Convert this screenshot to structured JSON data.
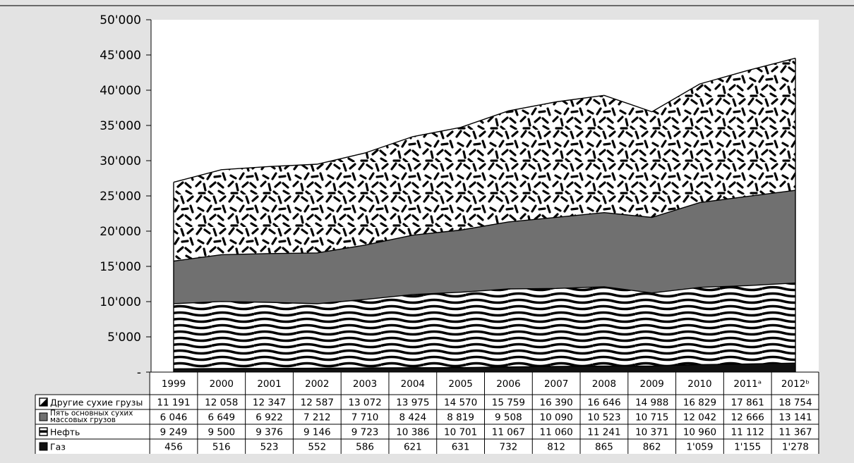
{
  "chart_data": {
    "type": "area",
    "stacked": true,
    "categories": [
      "1999",
      "2000",
      "2001",
      "2002",
      "2003",
      "2004",
      "2005",
      "2006",
      "2007",
      "2008",
      "2009",
      "2010",
      "2011ᵃ",
      "2012ᵇ"
    ],
    "y_tick_labels": [
      "-",
      "5'000",
      "10'000",
      "15'000",
      "20'000",
      "25'000",
      "30'000",
      "35'000",
      "40'000",
      "45'000",
      "50'000"
    ],
    "ylim": [
      0,
      50000
    ],
    "grid": false,
    "legend": "table-below",
    "series": [
      {
        "name": "Газ",
        "fill": "#111111",
        "pattern": "solid",
        "values": [
          456,
          516,
          523,
          552,
          586,
          621,
          631,
          732,
          812,
          865,
          862,
          1059,
          1155,
          1278
        ],
        "labels": [
          "456",
          "516",
          "523",
          "552",
          "586",
          "621",
          "631",
          "732",
          "812",
          "865",
          "862",
          "1'059",
          "1'155",
          "1'278"
        ]
      },
      {
        "name": "Нефть",
        "fill": "#ffffff",
        "pattern": "waves",
        "values": [
          9249,
          9500,
          9376,
          9146,
          9723,
          10386,
          10701,
          11067,
          11060,
          11241,
          10371,
          10960,
          11112,
          11367
        ],
        "labels": [
          "9 249",
          "9 500",
          "9 376",
          "9 146",
          "9 723",
          "10 386",
          "10 701",
          "11 067",
          "11 060",
          "11 241",
          "10 371",
          "10 960",
          "11 112",
          "11 367"
        ]
      },
      {
        "name": "Пять основных сухих массовых грузов",
        "fill": "#707070",
        "pattern": "solid",
        "values": [
          6046,
          6649,
          6922,
          7212,
          7710,
          8424,
          8819,
          9508,
          10090,
          10523,
          10715,
          12042,
          12666,
          13141
        ],
        "labels": [
          "6 046",
          "6 649",
          "6 922",
          "7 212",
          "7 710",
          "8 424",
          "8 819",
          "9 508",
          "10 090",
          "10 523",
          "10 715",
          "12 042",
          "12 666",
          "13 141"
        ]
      },
      {
        "name": "Другие сухие грузы",
        "fill": "#ffffff",
        "pattern": "dashes",
        "values": [
          11191,
          12058,
          12347,
          12587,
          13072,
          13975,
          14570,
          15759,
          16390,
          16646,
          14988,
          16829,
          17861,
          18754
        ],
        "labels": [
          "11 191",
          "12 058",
          "12 347",
          "12 587",
          "13 072",
          "13 975",
          "14 570",
          "15 759",
          "16 390",
          "16 646",
          "14 988",
          "16 829",
          "17 861",
          "18 754"
        ]
      }
    ],
    "legend_order": [
      3,
      2,
      1,
      0
    ],
    "legend_lines": [
      [
        "Другие сухие грузы"
      ],
      [
        "Пять основных сухих",
        "массовых грузов"
      ],
      [
        "Нефть"
      ],
      [
        "Газ"
      ]
    ],
    "colors": {
      "background": "#e3e3e3",
      "plot": "#ffffff",
      "line": "#000000"
    }
  }
}
